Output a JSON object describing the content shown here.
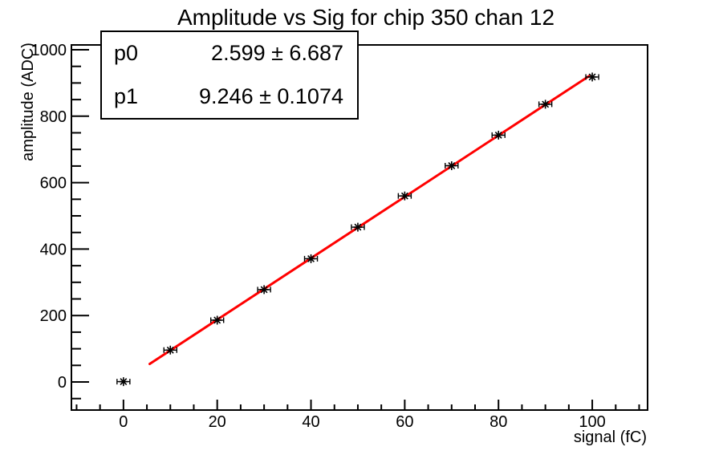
{
  "title": "Amplitude vs Sig for chip 350 chan 12",
  "stats_box": {
    "rows": [
      {
        "name": "p0",
        "value": "2.599 ± 6.687"
      },
      {
        "name": "p1",
        "value": "9.246 ± 0.1074"
      }
    ]
  },
  "colors": {
    "background": "#ffffff",
    "frame": "#000000",
    "marker": "#000000",
    "fit_line": "#ff0000"
  },
  "chart_data": {
    "type": "scatter",
    "title": "Amplitude vs Sig for chip 350 chan 12",
    "xlabel": "signal (fC)",
    "ylabel": "amplitude (ADC)",
    "xlim": [
      -11.1,
      111.8
    ],
    "ylim": [
      -84.5,
      1014.5
    ],
    "grid": false,
    "x_ticks": {
      "major": [
        0,
        20,
        40,
        60,
        80,
        100
      ],
      "minor_step": 5
    },
    "y_ticks": {
      "major": [
        0,
        200,
        400,
        600,
        800,
        1000
      ],
      "minor_step": 50
    },
    "series": [
      {
        "name": "measured amplitudes",
        "kind": "points",
        "marker": "asterisk",
        "color": "#000000",
        "x": [
          0,
          10,
          20,
          30,
          40,
          50,
          60,
          70,
          80,
          90,
          100
        ],
        "y": [
          1,
          96,
          186,
          278,
          371,
          466,
          560,
          651,
          743,
          836,
          918
        ],
        "x_err": 1.37
      },
      {
        "name": "linear fit",
        "kind": "fit-line",
        "color": "#ff0000",
        "p0": 2.599,
        "p1": 9.246,
        "x_range": [
          5.6,
          99.3
        ]
      }
    ]
  }
}
